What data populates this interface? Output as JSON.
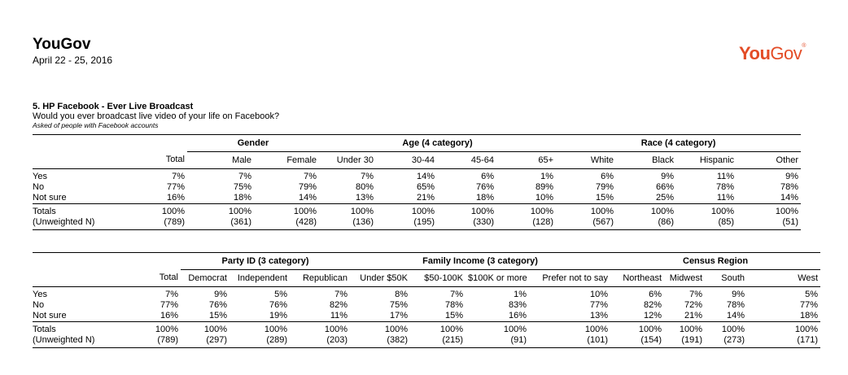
{
  "header": {
    "brand": "YouGov",
    "date": "April 22 - 25, 2016",
    "logo_you": "You",
    "logo_gov": "Gov",
    "logo_mark": "®",
    "logo_color": "#e34c26"
  },
  "question": {
    "title": "5. HP Facebook - Ever Live Broadcast",
    "text": "Would you ever broadcast live video of your life on Facebook?",
    "note": "Asked of people with Facebook accounts"
  },
  "table1": {
    "groups": [
      "Gender",
      "Age (4 category)",
      "Race (4 category)"
    ],
    "columns": [
      "Total",
      "Male",
      "Female",
      "Under 30",
      "30-44",
      "45-64",
      "65+",
      "White",
      "Black",
      "Hispanic",
      "Other"
    ],
    "rows": [
      {
        "label": "Yes",
        "values": [
          "7%",
          "7%",
          "7%",
          "7%",
          "14%",
          "6%",
          "1%",
          "6%",
          "9%",
          "11%",
          "9%"
        ]
      },
      {
        "label": "No",
        "values": [
          "77%",
          "75%",
          "79%",
          "80%",
          "65%",
          "76%",
          "89%",
          "79%",
          "66%",
          "78%",
          "78%"
        ]
      },
      {
        "label": "Not sure",
        "values": [
          "16%",
          "18%",
          "14%",
          "13%",
          "21%",
          "18%",
          "10%",
          "15%",
          "25%",
          "11%",
          "14%"
        ]
      }
    ],
    "totals": [
      {
        "label": "Totals",
        "values": [
          "100%",
          "100%",
          "100%",
          "100%",
          "100%",
          "100%",
          "100%",
          "100%",
          "100%",
          "100%",
          "100%"
        ]
      },
      {
        "label": "(Unweighted N)",
        "values": [
          "(789)",
          "(361)",
          "(428)",
          "(136)",
          "(195)",
          "(330)",
          "(128)",
          "(567)",
          "(86)",
          "(85)",
          "(51)"
        ]
      }
    ]
  },
  "table2": {
    "groups": [
      "Party ID (3 category)",
      "Family Income (3 category)",
      "Census Region"
    ],
    "columns": [
      "Total",
      "Democrat",
      "Independent",
      "Republican",
      "Under $50K",
      "$50-100K",
      "$100K or more",
      "Prefer not to say",
      "Northeast",
      "Midwest",
      "South",
      "West"
    ],
    "rows": [
      {
        "label": "Yes",
        "values": [
          "7%",
          "9%",
          "5%",
          "7%",
          "8%",
          "7%",
          "1%",
          "10%",
          "6%",
          "7%",
          "9%",
          "5%"
        ]
      },
      {
        "label": "No",
        "values": [
          "77%",
          "76%",
          "76%",
          "82%",
          "75%",
          "78%",
          "83%",
          "77%",
          "82%",
          "72%",
          "78%",
          "77%"
        ]
      },
      {
        "label": "Not sure",
        "values": [
          "16%",
          "15%",
          "19%",
          "11%",
          "17%",
          "15%",
          "16%",
          "13%",
          "12%",
          "21%",
          "14%",
          "18%"
        ]
      }
    ],
    "totals": [
      {
        "label": "Totals",
        "values": [
          "100%",
          "100%",
          "100%",
          "100%",
          "100%",
          "100%",
          "100%",
          "100%",
          "100%",
          "100%",
          "100%",
          "100%"
        ]
      },
      {
        "label": "(Unweighted N)",
        "values": [
          "(789)",
          "(297)",
          "(289)",
          "(203)",
          "(382)",
          "(215)",
          "(91)",
          "(101)",
          "(154)",
          "(191)",
          "(273)",
          "(171)"
        ]
      }
    ]
  }
}
